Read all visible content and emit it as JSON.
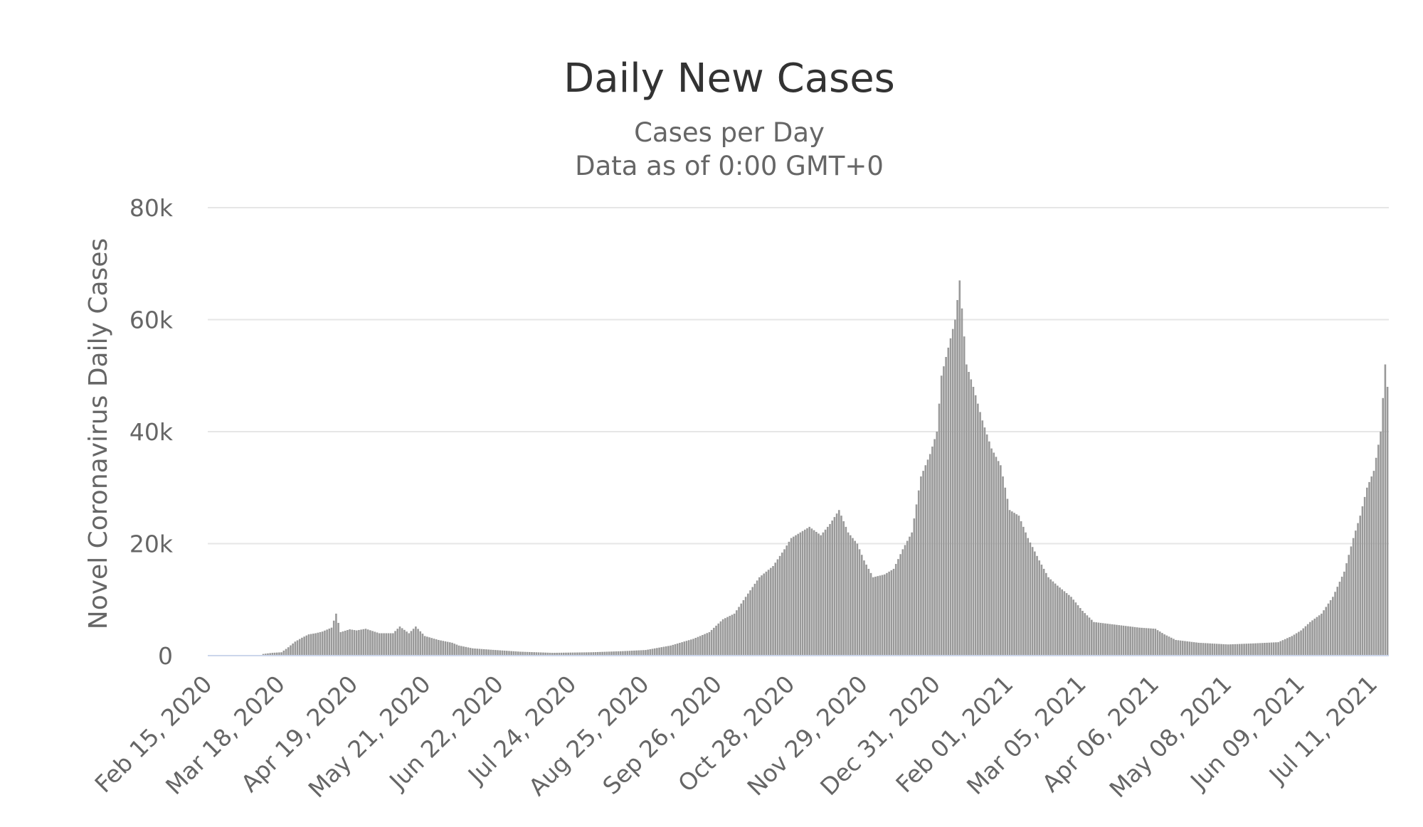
{
  "chart_data": {
    "type": "bar",
    "title": "Daily New Cases",
    "subtitle": [
      "Cases per Day",
      "Data as of 0:00 GMT+0"
    ],
    "ylabel": "Novel Coronavirus Daily Cases",
    "xlabel": "",
    "ylim": [
      0,
      80000
    ],
    "yticks": [
      "0",
      "20k",
      "40k",
      "60k",
      "80k"
    ],
    "x_tick_labels": [
      "Feb 15, 2020",
      "Mar 18, 2020",
      "Apr 19, 2020",
      "May 21, 2020",
      "Jun 22, 2020",
      "Jul 24, 2020",
      "Aug 25, 2020",
      "Sep 26, 2020",
      "Oct 28, 2020",
      "Nov 29, 2020",
      "Dec 31, 2020",
      "Feb 01, 2021",
      "Mar 05, 2021",
      "Apr 06, 2021",
      "May 08, 2021",
      "Jun 09, 2021",
      "Jul 11, 2021"
    ],
    "x_start": "2020-02-15",
    "x_end": "2021-07-17",
    "bar_color": "#999999",
    "grid": true,
    "series": [
      {
        "values_by_date": [
          [
            "2020-03-10",
            300
          ],
          [
            "2020-03-14",
            500
          ],
          [
            "2020-03-18",
            600
          ],
          [
            "2020-03-21",
            1500
          ],
          [
            "2020-03-24",
            2500
          ],
          [
            "2020-03-27",
            3200
          ],
          [
            "2020-03-30",
            3800
          ],
          [
            "2020-04-02",
            4000
          ],
          [
            "2020-04-05",
            4300
          ],
          [
            "2020-04-09",
            5000
          ],
          [
            "2020-04-11",
            7500
          ],
          [
            "2020-04-13",
            4200
          ],
          [
            "2020-04-17",
            4700
          ],
          [
            "2020-04-20",
            4500
          ],
          [
            "2020-04-24",
            4800
          ],
          [
            "2020-04-30",
            4000
          ],
          [
            "2020-05-06",
            4000
          ],
          [
            "2020-05-09",
            5200
          ],
          [
            "2020-05-13",
            4000
          ],
          [
            "2020-05-16",
            5200
          ],
          [
            "2020-05-20",
            3500
          ],
          [
            "2020-05-26",
            2800
          ],
          [
            "2020-06-01",
            2300
          ],
          [
            "2020-06-04",
            1800
          ],
          [
            "2020-06-10",
            1300
          ],
          [
            "2020-06-20",
            1000
          ],
          [
            "2020-07-01",
            700
          ],
          [
            "2020-07-15",
            500
          ],
          [
            "2020-08-01",
            600
          ],
          [
            "2020-08-15",
            800
          ],
          [
            "2020-08-25",
            1000
          ],
          [
            "2020-09-05",
            1800
          ],
          [
            "2020-09-15",
            3000
          ],
          [
            "2020-09-22",
            4200
          ],
          [
            "2020-09-28",
            6500
          ],
          [
            "2020-10-03",
            7500
          ],
          [
            "2020-10-08",
            10500
          ],
          [
            "2020-10-14",
            14000
          ],
          [
            "2020-10-20",
            16000
          ],
          [
            "2020-10-25",
            19000
          ],
          [
            "2020-10-28",
            21000
          ],
          [
            "2020-11-01",
            22000
          ],
          [
            "2020-11-05",
            23000
          ],
          [
            "2020-11-10",
            21500
          ],
          [
            "2020-11-14",
            23500
          ],
          [
            "2020-11-18",
            26000
          ],
          [
            "2020-11-22",
            22000
          ],
          [
            "2020-11-26",
            20000
          ],
          [
            "2020-11-29",
            17000
          ],
          [
            "2020-12-03",
            14000
          ],
          [
            "2020-12-08",
            14500
          ],
          [
            "2020-12-12",
            15500
          ],
          [
            "2020-12-16",
            19000
          ],
          [
            "2020-12-20",
            22000
          ],
          [
            "2020-12-24",
            32000
          ],
          [
            "2020-12-28",
            36000
          ],
          [
            "2020-12-31",
            40000
          ],
          [
            "2021-01-02",
            50000
          ],
          [
            "2021-01-05",
            55000
          ],
          [
            "2021-01-08",
            60000
          ],
          [
            "2021-01-10",
            67000
          ],
          [
            "2021-01-13",
            52000
          ],
          [
            "2021-01-16",
            48000
          ],
          [
            "2021-01-20",
            42000
          ],
          [
            "2021-01-24",
            37000
          ],
          [
            "2021-01-28",
            34000
          ],
          [
            "2021-02-01",
            26000
          ],
          [
            "2021-02-05",
            25000
          ],
          [
            "2021-02-09",
            21000
          ],
          [
            "2021-02-14",
            17000
          ],
          [
            "2021-02-18",
            14000
          ],
          [
            "2021-02-22",
            12500
          ],
          [
            "2021-02-28",
            10500
          ],
          [
            "2021-03-05",
            8000
          ],
          [
            "2021-03-10",
            6000
          ],
          [
            "2021-03-20",
            5500
          ],
          [
            "2021-03-30",
            5000
          ],
          [
            "2021-04-06",
            4800
          ],
          [
            "2021-04-10",
            3800
          ],
          [
            "2021-04-15",
            2800
          ],
          [
            "2021-04-25",
            2300
          ],
          [
            "2021-05-08",
            2000
          ],
          [
            "2021-05-20",
            2200
          ],
          [
            "2021-05-30",
            2400
          ],
          [
            "2021-06-05",
            3500
          ],
          [
            "2021-06-09",
            4500
          ],
          [
            "2021-06-13",
            6000
          ],
          [
            "2021-06-18",
            7500
          ],
          [
            "2021-06-23",
            10500
          ],
          [
            "2021-06-28",
            15000
          ],
          [
            "2021-07-02",
            21000
          ],
          [
            "2021-07-05",
            25000
          ],
          [
            "2021-07-08",
            30000
          ],
          [
            "2021-07-11",
            33000
          ],
          [
            "2021-07-14",
            40000
          ],
          [
            "2021-07-16",
            52000
          ],
          [
            "2021-07-17",
            48000
          ]
        ]
      }
    ]
  }
}
